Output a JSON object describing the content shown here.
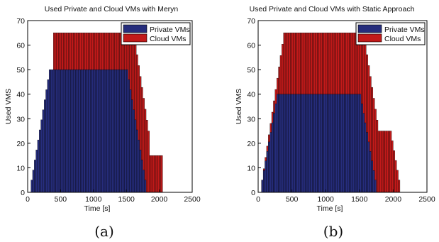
{
  "chart_data": [
    {
      "type": "bar",
      "title": "Used Private and Cloud VMs with Meryn",
      "xlabel": "Time [s]",
      "ylabel": "Used VMS",
      "xlim": [
        0,
        2500
      ],
      "ylim": [
        0,
        70
      ],
      "xticks": [
        "0",
        "500",
        "1000",
        "1500",
        "2000",
        "2500"
      ],
      "yticks": [
        "0",
        "10",
        "20",
        "30",
        "40",
        "50",
        "60",
        "70"
      ],
      "legend_position": "top-right",
      "caption": "(a)",
      "stacked": true,
      "series": [
        {
          "name": "Private VMs",
          "color": "#262d7c",
          "segments": [
            {
              "x_start": 50,
              "x_end": 350,
              "from": 5,
              "to": 50
            },
            {
              "x_start": 350,
              "x_end": 1500,
              "from": 50,
              "to": 50
            },
            {
              "x_start": 1500,
              "x_end": 1800,
              "from": 50,
              "to": 5
            }
          ]
        },
        {
          "name": "Cloud VMs",
          "color": "#c21a1a",
          "segments": [
            {
              "x_start": 390,
              "x_end": 1600,
              "from": 65,
              "to": 65
            },
            {
              "x_start": 1600,
              "x_end": 1850,
              "from": 65,
              "to": 25
            },
            {
              "x_start": 1850,
              "x_end": 2050,
              "from": 15,
              "to": 15
            }
          ]
        }
      ]
    },
    {
      "type": "bar",
      "title": "Used Private and Cloud VMs with Static Approach",
      "xlabel": "Time [s]",
      "ylabel": "Used VMS",
      "xlim": [
        0,
        2500
      ],
      "ylim": [
        0,
        70
      ],
      "xticks": [
        "0",
        "500",
        "1000",
        "1500",
        "2000",
        "2500"
      ],
      "yticks": [
        "0",
        "10",
        "20",
        "30",
        "40",
        "50",
        "60",
        "70"
      ],
      "legend_position": "top-right",
      "caption": "(b)",
      "stacked": true,
      "series": [
        {
          "name": "Private VMs",
          "color": "#262d7c",
          "segments": [
            {
              "x_start": 50,
              "x_end": 300,
              "from": 5,
              "to": 40
            },
            {
              "x_start": 300,
              "x_end": 1500,
              "from": 40,
              "to": 40
            },
            {
              "x_start": 1500,
              "x_end": 1750,
              "from": 40,
              "to": 5
            }
          ]
        },
        {
          "name": "Cloud VMs",
          "color": "#c21a1a",
          "segments": [
            {
              "x_start": 50,
              "x_end": 400,
              "from": 5,
              "to": 65
            },
            {
              "x_start": 400,
              "x_end": 1550,
              "from": 65,
              "to": 65
            },
            {
              "x_start": 1550,
              "x_end": 1800,
              "from": 65,
              "to": 25
            },
            {
              "x_start": 1800,
              "x_end": 1950,
              "from": 25,
              "to": 25
            },
            {
              "x_start": 1950,
              "x_end": 2100,
              "from": 25,
              "to": 5
            }
          ]
        }
      ]
    }
  ]
}
